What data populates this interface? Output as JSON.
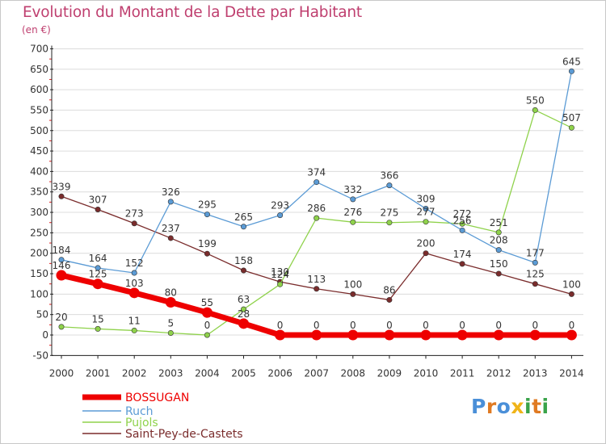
{
  "header": {
    "title": "Evolution du Montant de la Dette par Habitant",
    "unit": "(en €)"
  },
  "logo": {
    "text": "Proxiti",
    "letters": [
      "P",
      "r",
      "o",
      "x",
      "i",
      "t",
      "i"
    ],
    "colors": [
      "#4a8fd8",
      "#e07a22",
      "#4a8fd8",
      "#f0b418",
      "#3aa34a",
      "#e07a22",
      "#3aa34a"
    ]
  },
  "chart_data": {
    "type": "line",
    "title": "Evolution du Montant de la Dette par Habitant",
    "ylabel": "(en €)",
    "xlabel": "",
    "x": [
      "2000",
      "2001",
      "2002",
      "2003",
      "2004",
      "2005",
      "2006",
      "2007",
      "2008",
      "2009",
      "2010",
      "2011",
      "2012",
      "2013",
      "2014"
    ],
    "ylim": [
      -50,
      700
    ],
    "yticks": [
      -50,
      0,
      50,
      100,
      150,
      200,
      250,
      300,
      350,
      400,
      450,
      500,
      550,
      600,
      650,
      700
    ],
    "grid": "horizontal",
    "legend": "bottom-left",
    "series": [
      {
        "name": "BOSSUGAN",
        "color": "#ee0000",
        "values": [
          146,
          125,
          103,
          80,
          55,
          28,
          0,
          0,
          0,
          0,
          0,
          0,
          0,
          0,
          0
        ]
      },
      {
        "name": "Ruch",
        "color": "#5b9bd5",
        "values": [
          184,
          164,
          152,
          326,
          295,
          265,
          293,
          374,
          332,
          366,
          309,
          256,
          208,
          177,
          645
        ]
      },
      {
        "name": "Pujols",
        "color": "#8fd24b",
        "values": [
          20,
          15,
          11,
          5,
          0,
          63,
          124,
          286,
          276,
          275,
          277,
          272,
          251,
          550,
          507
        ]
      },
      {
        "name": "Saint-Pey-de-Castets",
        "color": "#7a2c2c",
        "values": [
          339,
          307,
          273,
          237,
          199,
          158,
          130,
          113,
          100,
          86,
          200,
          174,
          150,
          125,
          100
        ]
      }
    ]
  }
}
